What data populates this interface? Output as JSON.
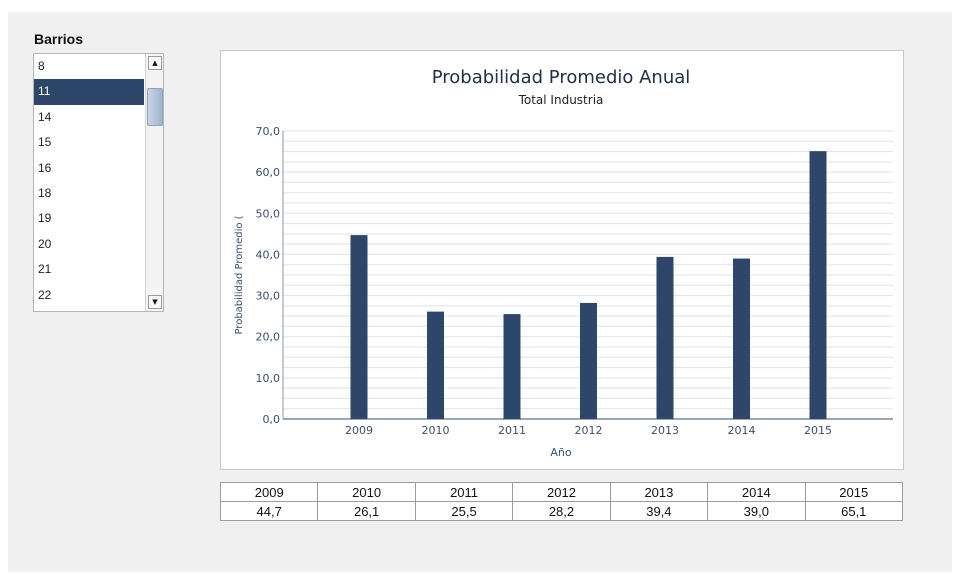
{
  "barrios": {
    "title": "Barrios",
    "items": [
      "8",
      "11",
      "14",
      "15",
      "16",
      "18",
      "19",
      "20",
      "21",
      "22"
    ],
    "selected_index": 1
  },
  "scrollbar": {
    "up_icon": "triangle-up",
    "down_icon": "triangle-down"
  },
  "chart_data": {
    "type": "bar",
    "title": "Probabilidad Promedio Anual",
    "subtitle": "Total Industria",
    "xlabel": "Año",
    "ylabel": "Probabilidad Promedio (",
    "categories": [
      "2009",
      "2010",
      "2011",
      "2012",
      "2013",
      "2014",
      "2015"
    ],
    "values": [
      44.7,
      26.1,
      25.5,
      28.2,
      39.4,
      39.0,
      65.1
    ],
    "ylim": [
      0,
      70
    ],
    "yticks": [
      "0,0",
      "10,0",
      "20,0",
      "30,0",
      "40,0",
      "50,0",
      "60,0",
      "70,0"
    ],
    "grid": true,
    "bar_color": "#2e4669",
    "axis_text_color": "#3a4f6c"
  },
  "table": {
    "years": [
      "2009",
      "2010",
      "2011",
      "2012",
      "2013",
      "2014",
      "2015"
    ],
    "values": [
      "44,7",
      "26,1",
      "25,5",
      "28,2",
      "39,4",
      "39,0",
      "65,1"
    ]
  }
}
